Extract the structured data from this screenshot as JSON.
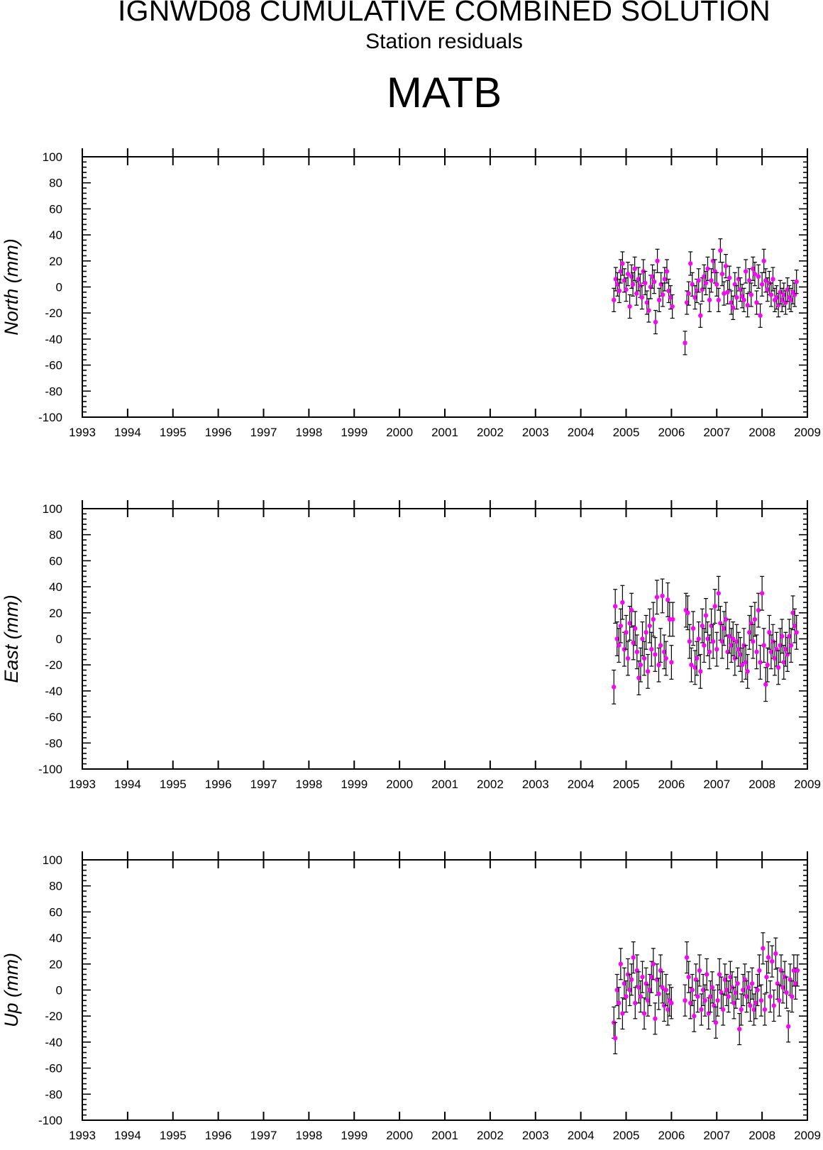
{
  "titles": {
    "main": "IGNWD08 CUMULATIVE COMBINED SOLUTION",
    "subtitle": "Station residuals",
    "station": "MATB"
  },
  "colors": {
    "point": "#ff00ff",
    "errorbar": "#000000",
    "axis": "#000000"
  },
  "chart_data": [
    {
      "type": "scatter",
      "ylabel": "North (mm)",
      "xlim": [
        1993,
        2009
      ],
      "ylim": [
        -100,
        100
      ],
      "xticks": [
        "1993",
        "1994",
        "1995",
        "1996",
        "1997",
        "1998",
        "1999",
        "2000",
        "2001",
        "2002",
        "2003",
        "2004",
        "2005",
        "2006",
        "2007",
        "2008",
        "2009"
      ],
      "yticks": [
        "100",
        "80",
        "60",
        "40",
        "20",
        "0",
        "-20",
        "-40",
        "-60",
        "-80",
        "-100"
      ],
      "grid": false,
      "error_bar_mm": 9,
      "points": [
        [
          2004.73,
          -10
        ],
        [
          2004.77,
          6
        ],
        [
          2004.81,
          2
        ],
        [
          2004.85,
          -3
        ],
        [
          2004.88,
          12
        ],
        [
          2004.92,
          18
        ],
        [
          2004.96,
          5
        ],
        [
          2005.0,
          -2
        ],
        [
          2005.04,
          10
        ],
        [
          2005.08,
          -15
        ],
        [
          2005.12,
          8
        ],
        [
          2005.15,
          2
        ],
        [
          2005.19,
          14
        ],
        [
          2005.23,
          -5
        ],
        [
          2005.27,
          6
        ],
        [
          2005.31,
          1
        ],
        [
          2005.35,
          -8
        ],
        [
          2005.38,
          12
        ],
        [
          2005.42,
          3
        ],
        [
          2005.46,
          -12
        ],
        [
          2005.5,
          -18
        ],
        [
          2005.54,
          0
        ],
        [
          2005.58,
          8
        ],
        [
          2005.62,
          4
        ],
        [
          2005.65,
          -27
        ],
        [
          2005.69,
          20
        ],
        [
          2005.73,
          -10
        ],
        [
          2005.77,
          2
        ],
        [
          2005.81,
          -6
        ],
        [
          2005.85,
          6
        ],
        [
          2005.9,
          12
        ],
        [
          2005.94,
          -3
        ],
        [
          2005.98,
          -8
        ],
        [
          2006.02,
          -15
        ],
        [
          2006.3,
          -43
        ],
        [
          2006.34,
          -12
        ],
        [
          2006.38,
          -5
        ],
        [
          2006.42,
          18
        ],
        [
          2006.46,
          2
        ],
        [
          2006.52,
          -8
        ],
        [
          2006.56,
          -3
        ],
        [
          2006.6,
          5
        ],
        [
          2006.64,
          -22
        ],
        [
          2006.68,
          -2
        ],
        [
          2006.72,
          8
        ],
        [
          2006.76,
          3
        ],
        [
          2006.8,
          14
        ],
        [
          2006.84,
          -10
        ],
        [
          2006.88,
          5
        ],
        [
          2006.92,
          20
        ],
        [
          2006.96,
          12
        ],
        [
          2007.0,
          2
        ],
        [
          2007.04,
          -10
        ],
        [
          2007.08,
          28
        ],
        [
          2007.12,
          10
        ],
        [
          2007.16,
          -5
        ],
        [
          2007.2,
          16
        ],
        [
          2007.24,
          -4
        ],
        [
          2007.28,
          7
        ],
        [
          2007.32,
          -12
        ],
        [
          2007.36,
          -16
        ],
        [
          2007.4,
          2
        ],
        [
          2007.44,
          -8
        ],
        [
          2007.48,
          6
        ],
        [
          2007.52,
          -2
        ],
        [
          2007.56,
          -7
        ],
        [
          2007.6,
          -10
        ],
        [
          2007.64,
          12
        ],
        [
          2007.68,
          -14
        ],
        [
          2007.72,
          5
        ],
        [
          2007.76,
          -6
        ],
        [
          2007.8,
          14
        ],
        [
          2007.84,
          10
        ],
        [
          2007.88,
          -12
        ],
        [
          2007.92,
          8
        ],
        [
          2007.96,
          -22
        ],
        [
          2008.0,
          2
        ],
        [
          2008.04,
          20
        ],
        [
          2008.08,
          5
        ],
        [
          2008.12,
          -2
        ],
        [
          2008.16,
          3
        ],
        [
          2008.2,
          -6
        ],
        [
          2008.24,
          6
        ],
        [
          2008.28,
          -10
        ],
        [
          2008.32,
          -8
        ],
        [
          2008.36,
          -14
        ],
        [
          2008.4,
          -4
        ],
        [
          2008.44,
          -10
        ],
        [
          2008.48,
          -6
        ],
        [
          2008.52,
          -12
        ],
        [
          2008.56,
          -2
        ],
        [
          2008.6,
          -8
        ],
        [
          2008.64,
          -10
        ],
        [
          2008.68,
          -4
        ],
        [
          2008.72,
          -6
        ],
        [
          2008.76,
          4
        ]
      ]
    },
    {
      "type": "scatter",
      "ylabel": "East (mm)",
      "xlim": [
        1993,
        2009
      ],
      "ylim": [
        -100,
        100
      ],
      "xticks": [
        "1993",
        "1994",
        "1995",
        "1996",
        "1997",
        "1998",
        "1999",
        "2000",
        "2001",
        "2002",
        "2003",
        "2004",
        "2005",
        "2006",
        "2007",
        "2008",
        "2009"
      ],
      "yticks": [
        "100",
        "80",
        "60",
        "40",
        "20",
        "0",
        "-20",
        "-40",
        "-60",
        "-80",
        "-100"
      ],
      "grid": false,
      "error_bar_mm": 13,
      "points": [
        [
          2004.73,
          -37
        ],
        [
          2004.76,
          25
        ],
        [
          2004.8,
          0
        ],
        [
          2004.84,
          -5
        ],
        [
          2004.88,
          10
        ],
        [
          2004.92,
          28
        ],
        [
          2004.96,
          -8
        ],
        [
          2005.0,
          5
        ],
        [
          2005.04,
          -15
        ],
        [
          2005.08,
          12
        ],
        [
          2005.12,
          22
        ],
        [
          2005.16,
          -3
        ],
        [
          2005.2,
          8
        ],
        [
          2005.24,
          -10
        ],
        [
          2005.28,
          -30
        ],
        [
          2005.32,
          -20
        ],
        [
          2005.36,
          0
        ],
        [
          2005.4,
          -15
        ],
        [
          2005.44,
          5
        ],
        [
          2005.48,
          -25
        ],
        [
          2005.52,
          10
        ],
        [
          2005.56,
          -8
        ],
        [
          2005.6,
          15
        ],
        [
          2005.64,
          -12
        ],
        [
          2005.68,
          32
        ],
        [
          2005.72,
          -20
        ],
        [
          2005.76,
          -5
        ],
        [
          2005.8,
          33
        ],
        [
          2005.84,
          -10
        ],
        [
          2005.88,
          -15
        ],
        [
          2005.92,
          30
        ],
        [
          2005.96,
          15
        ],
        [
          2006.0,
          -18
        ],
        [
          2006.03,
          15
        ],
        [
          2006.32,
          22
        ],
        [
          2006.36,
          20
        ],
        [
          2006.4,
          -2
        ],
        [
          2006.44,
          -20
        ],
        [
          2006.48,
          8
        ],
        [
          2006.52,
          -22
        ],
        [
          2006.56,
          -15
        ],
        [
          2006.6,
          0
        ],
        [
          2006.64,
          -25
        ],
        [
          2006.68,
          10
        ],
        [
          2006.72,
          -5
        ],
        [
          2006.76,
          18
        ],
        [
          2006.8,
          0
        ],
        [
          2006.84,
          -10
        ],
        [
          2006.88,
          10
        ],
        [
          2006.92,
          -2
        ],
        [
          2006.96,
          25
        ],
        [
          2007.0,
          -8
        ],
        [
          2007.04,
          35
        ],
        [
          2007.08,
          12
        ],
        [
          2007.12,
          -2
        ],
        [
          2007.16,
          8
        ],
        [
          2007.2,
          15
        ],
        [
          2007.24,
          -10
        ],
        [
          2007.28,
          2
        ],
        [
          2007.32,
          -5
        ],
        [
          2007.36,
          0
        ],
        [
          2007.4,
          -15
        ],
        [
          2007.44,
          -2
        ],
        [
          2007.48,
          -8
        ],
        [
          2007.52,
          -12
        ],
        [
          2007.56,
          -20
        ],
        [
          2007.6,
          -5
        ],
        [
          2007.64,
          -18
        ],
        [
          2007.68,
          -25
        ],
        [
          2007.72,
          5
        ],
        [
          2007.76,
          12
        ],
        [
          2007.8,
          -2
        ],
        [
          2007.84,
          15
        ],
        [
          2007.88,
          -10
        ],
        [
          2007.92,
          22
        ],
        [
          2007.96,
          -18
        ],
        [
          2008.0,
          35
        ],
        [
          2008.04,
          -5
        ],
        [
          2008.08,
          -35
        ],
        [
          2008.12,
          -20
        ],
        [
          2008.16,
          5
        ],
        [
          2008.2,
          -10
        ],
        [
          2008.24,
          -2
        ],
        [
          2008.28,
          -15
        ],
        [
          2008.32,
          -8
        ],
        [
          2008.36,
          -22
        ],
        [
          2008.4,
          -5
        ],
        [
          2008.44,
          2
        ],
        [
          2008.48,
          -18
        ],
        [
          2008.52,
          -8
        ],
        [
          2008.56,
          -12
        ],
        [
          2008.6,
          2
        ],
        [
          2008.64,
          -5
        ],
        [
          2008.68,
          20
        ],
        [
          2008.72,
          10
        ],
        [
          2008.76,
          5
        ]
      ]
    },
    {
      "type": "scatter",
      "ylabel": "Up (mm)",
      "xlim": [
        1993,
        2009
      ],
      "ylim": [
        -100,
        100
      ],
      "xticks": [
        "1993",
        "1994",
        "1995",
        "1996",
        "1997",
        "1998",
        "1999",
        "2000",
        "2001",
        "2002",
        "2003",
        "2004",
        "2005",
        "2006",
        "2007",
        "2008",
        "2009"
      ],
      "yticks": [
        "100",
        "80",
        "60",
        "40",
        "20",
        "0",
        "-20",
        "-40",
        "-60",
        "-80",
        "-100"
      ],
      "grid": false,
      "error_bar_mm": 12,
      "points": [
        [
          2004.73,
          -25
        ],
        [
          2004.76,
          -37
        ],
        [
          2004.8,
          0
        ],
        [
          2004.84,
          -10
        ],
        [
          2004.88,
          20
        ],
        [
          2004.92,
          -18
        ],
        [
          2004.96,
          5
        ],
        [
          2005.0,
          -5
        ],
        [
          2005.04,
          12
        ],
        [
          2005.08,
          0
        ],
        [
          2005.12,
          8
        ],
        [
          2005.16,
          25
        ],
        [
          2005.2,
          -10
        ],
        [
          2005.24,
          15
        ],
        [
          2005.28,
          2
        ],
        [
          2005.32,
          -5
        ],
        [
          2005.36,
          10
        ],
        [
          2005.4,
          -18
        ],
        [
          2005.44,
          5
        ],
        [
          2005.48,
          -8
        ],
        [
          2005.52,
          0
        ],
        [
          2005.56,
          10
        ],
        [
          2005.6,
          20
        ],
        [
          2005.64,
          -22
        ],
        [
          2005.68,
          8
        ],
        [
          2005.72,
          -3
        ],
        [
          2005.76,
          15
        ],
        [
          2005.8,
          2
        ],
        [
          2005.84,
          -12
        ],
        [
          2005.88,
          0
        ],
        [
          2005.92,
          -15
        ],
        [
          2005.96,
          -8
        ],
        [
          2006.0,
          -10
        ],
        [
          2006.3,
          -8
        ],
        [
          2006.34,
          25
        ],
        [
          2006.38,
          10
        ],
        [
          2006.42,
          -10
        ],
        [
          2006.46,
          0
        ],
        [
          2006.5,
          -20
        ],
        [
          2006.54,
          8
        ],
        [
          2006.58,
          -5
        ],
        [
          2006.62,
          15
        ],
        [
          2006.66,
          -15
        ],
        [
          2006.7,
          0
        ],
        [
          2006.74,
          -8
        ],
        [
          2006.78,
          12
        ],
        [
          2006.82,
          -18
        ],
        [
          2006.86,
          -5
        ],
        [
          2006.9,
          2
        ],
        [
          2006.94,
          -12
        ],
        [
          2006.98,
          -25
        ],
        [
          2007.02,
          -8
        ],
        [
          2007.06,
          12
        ],
        [
          2007.1,
          -2
        ],
        [
          2007.14,
          -15
        ],
        [
          2007.18,
          8
        ],
        [
          2007.22,
          0
        ],
        [
          2007.26,
          -5
        ],
        [
          2007.3,
          10
        ],
        [
          2007.34,
          2
        ],
        [
          2007.38,
          -10
        ],
        [
          2007.42,
          -2
        ],
        [
          2007.46,
          5
        ],
        [
          2007.5,
          -30
        ],
        [
          2007.54,
          -15
        ],
        [
          2007.58,
          0
        ],
        [
          2007.62,
          8
        ],
        [
          2007.66,
          -5
        ],
        [
          2007.7,
          2
        ],
        [
          2007.74,
          -12
        ],
        [
          2007.78,
          5
        ],
        [
          2007.82,
          -15
        ],
        [
          2007.86,
          -10
        ],
        [
          2007.9,
          0
        ],
        [
          2007.94,
          15
        ],
        [
          2007.98,
          -8
        ],
        [
          2008.02,
          32
        ],
        [
          2008.06,
          -15
        ],
        [
          2008.1,
          10
        ],
        [
          2008.14,
          25
        ],
        [
          2008.18,
          -5
        ],
        [
          2008.22,
          22
        ],
        [
          2008.26,
          -12
        ],
        [
          2008.3,
          28
        ],
        [
          2008.34,
          5
        ],
        [
          2008.38,
          -8
        ],
        [
          2008.42,
          15
        ],
        [
          2008.46,
          2
        ],
        [
          2008.5,
          10
        ],
        [
          2008.54,
          -2
        ],
        [
          2008.58,
          -28
        ],
        [
          2008.62,
          8
        ],
        [
          2008.66,
          -5
        ],
        [
          2008.7,
          15
        ],
        [
          2008.74,
          5
        ],
        [
          2008.78,
          15
        ]
      ]
    }
  ]
}
